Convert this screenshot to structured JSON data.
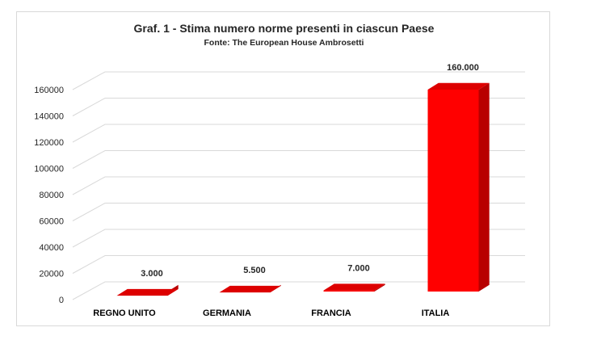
{
  "chart_data": {
    "type": "bar",
    "title": "Graf. 1 - Stima numero norme presenti in ciascun Paese",
    "subtitle": "Fonte: The European House Ambrosetti",
    "categories": [
      "REGNO UNITO",
      "GERMANIA",
      "FRANCIA",
      "ITALIA"
    ],
    "values": [
      3000,
      5500,
      7000,
      160000
    ],
    "data_labels": [
      "3.000",
      "5.500",
      "7.000",
      "160.000"
    ],
    "y_ticks": [
      0,
      20000,
      40000,
      60000,
      80000,
      100000,
      120000,
      140000,
      160000
    ],
    "y_tick_labels": [
      "0",
      "20000",
      "40000",
      "60000",
      "80000",
      "100000",
      "120000",
      "140000",
      "160000"
    ],
    "ylim": [
      0,
      160000
    ],
    "xlabel": "",
    "ylabel": "",
    "grid": true,
    "legend": "none",
    "three_d": true,
    "colors": {
      "bar_front": "#ff0000",
      "bar_side": "#b80000",
      "bar_top": "#dd0000",
      "grid": "#d9d9d9",
      "text": "#262626"
    }
  }
}
